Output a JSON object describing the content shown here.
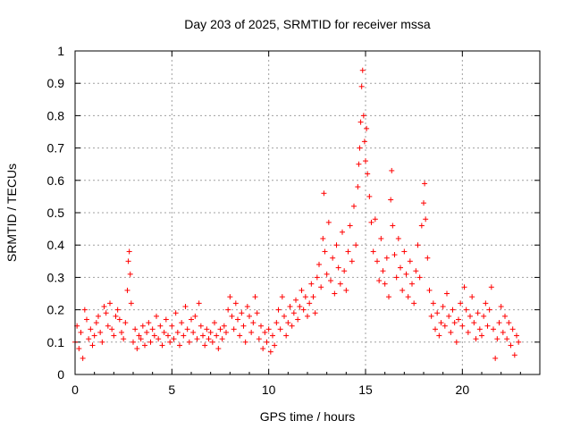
{
  "chart_data": {
    "type": "scatter",
    "title": "Day 203 of 2025, SRMTID for receiver mssa",
    "xlabel": "GPS time / hours",
    "ylabel": "SRMTID / TECUs",
    "xlim": [
      0,
      24
    ],
    "ylim": [
      0,
      1
    ],
    "xticks": [
      0,
      5,
      10,
      15,
      20
    ],
    "yticks": [
      0,
      0.1,
      0.2,
      0.3,
      0.4,
      0.5,
      0.6,
      0.7,
      0.8,
      0.9,
      1
    ],
    "grid": true,
    "marker": "+",
    "color": "#ff0000",
    "series": [
      {
        "name": "SRMTID",
        "points": [
          [
            0.0,
            0.1
          ],
          [
            0.1,
            0.15
          ],
          [
            0.2,
            0.08
          ],
          [
            0.3,
            0.13
          ],
          [
            0.4,
            0.05
          ],
          [
            0.5,
            0.2
          ],
          [
            0.6,
            0.17
          ],
          [
            0.7,
            0.11
          ],
          [
            0.8,
            0.14
          ],
          [
            0.9,
            0.09
          ],
          [
            1.0,
            0.12
          ],
          [
            1.1,
            0.16
          ],
          [
            1.2,
            0.18
          ],
          [
            1.3,
            0.13
          ],
          [
            1.4,
            0.1
          ],
          [
            1.5,
            0.21
          ],
          [
            1.6,
            0.19
          ],
          [
            1.7,
            0.15
          ],
          [
            1.8,
            0.22
          ],
          [
            1.9,
            0.14
          ],
          [
            2.0,
            0.12
          ],
          [
            2.1,
            0.18
          ],
          [
            2.2,
            0.2
          ],
          [
            2.3,
            0.17
          ],
          [
            2.4,
            0.13
          ],
          [
            2.5,
            0.11
          ],
          [
            2.6,
            0.16
          ],
          [
            2.7,
            0.26
          ],
          [
            2.75,
            0.35
          ],
          [
            2.8,
            0.38
          ],
          [
            2.85,
            0.31
          ],
          [
            2.9,
            0.22
          ],
          [
            3.0,
            0.1
          ],
          [
            3.1,
            0.14
          ],
          [
            3.2,
            0.08
          ],
          [
            3.3,
            0.12
          ],
          [
            3.4,
            0.11
          ],
          [
            3.5,
            0.15
          ],
          [
            3.6,
            0.09
          ],
          [
            3.7,
            0.13
          ],
          [
            3.8,
            0.16
          ],
          [
            3.9,
            0.1
          ],
          [
            4.0,
            0.14
          ],
          [
            4.1,
            0.12
          ],
          [
            4.2,
            0.18
          ],
          [
            4.3,
            0.11
          ],
          [
            4.4,
            0.15
          ],
          [
            4.5,
            0.09
          ],
          [
            4.6,
            0.13
          ],
          [
            4.7,
            0.17
          ],
          [
            4.8,
            0.12
          ],
          [
            4.9,
            0.1
          ],
          [
            5.0,
            0.15
          ],
          [
            5.1,
            0.11
          ],
          [
            5.2,
            0.19
          ],
          [
            5.3,
            0.13
          ],
          [
            5.4,
            0.09
          ],
          [
            5.5,
            0.16
          ],
          [
            5.6,
            0.12
          ],
          [
            5.7,
            0.21
          ],
          [
            5.8,
            0.14
          ],
          [
            5.9,
            0.1
          ],
          [
            6.0,
            0.17
          ],
          [
            6.1,
            0.13
          ],
          [
            6.2,
            0.18
          ],
          [
            6.3,
            0.11
          ],
          [
            6.4,
            0.22
          ],
          [
            6.5,
            0.15
          ],
          [
            6.6,
            0.12
          ],
          [
            6.7,
            0.09
          ],
          [
            6.8,
            0.14
          ],
          [
            6.9,
            0.11
          ],
          [
            7.0,
            0.13
          ],
          [
            7.1,
            0.1
          ],
          [
            7.2,
            0.16
          ],
          [
            7.3,
            0.12
          ],
          [
            7.4,
            0.08
          ],
          [
            7.5,
            0.14
          ],
          [
            7.6,
            0.11
          ],
          [
            7.7,
            0.15
          ],
          [
            7.8,
            0.13
          ],
          [
            7.9,
            0.2
          ],
          [
            8.0,
            0.24
          ],
          [
            8.1,
            0.18
          ],
          [
            8.2,
            0.14
          ],
          [
            8.3,
            0.22
          ],
          [
            8.4,
            0.17
          ],
          [
            8.5,
            0.12
          ],
          [
            8.6,
            0.19
          ],
          [
            8.7,
            0.15
          ],
          [
            8.8,
            0.1
          ],
          [
            8.9,
            0.21
          ],
          [
            9.0,
            0.18
          ],
          [
            9.1,
            0.13
          ],
          [
            9.2,
            0.16
          ],
          [
            9.3,
            0.24
          ],
          [
            9.4,
            0.19
          ],
          [
            9.5,
            0.11
          ],
          [
            9.6,
            0.15
          ],
          [
            9.7,
            0.08
          ],
          [
            9.8,
            0.13
          ],
          [
            9.9,
            0.1
          ],
          [
            10.0,
            0.14
          ],
          [
            10.1,
            0.07
          ],
          [
            10.2,
            0.12
          ],
          [
            10.3,
            0.09
          ],
          [
            10.4,
            0.16
          ],
          [
            10.5,
            0.2
          ],
          [
            10.6,
            0.14
          ],
          [
            10.7,
            0.24
          ],
          [
            10.8,
            0.18
          ],
          [
            10.9,
            0.12
          ],
          [
            11.0,
            0.16
          ],
          [
            11.1,
            0.21
          ],
          [
            11.2,
            0.15
          ],
          [
            11.3,
            0.19
          ],
          [
            11.4,
            0.23
          ],
          [
            11.5,
            0.17
          ],
          [
            11.6,
            0.21
          ],
          [
            11.7,
            0.26
          ],
          [
            11.8,
            0.2
          ],
          [
            11.9,
            0.24
          ],
          [
            12.0,
            0.18
          ],
          [
            12.1,
            0.22
          ],
          [
            12.2,
            0.28
          ],
          [
            12.3,
            0.24
          ],
          [
            12.4,
            0.19
          ],
          [
            12.5,
            0.3
          ],
          [
            12.6,
            0.34
          ],
          [
            12.7,
            0.27
          ],
          [
            12.8,
            0.42
          ],
          [
            12.85,
            0.56
          ],
          [
            12.9,
            0.38
          ],
          [
            13.0,
            0.31
          ],
          [
            13.1,
            0.47
          ],
          [
            13.2,
            0.29
          ],
          [
            13.3,
            0.36
          ],
          [
            13.4,
            0.25
          ],
          [
            13.5,
            0.4
          ],
          [
            13.6,
            0.33
          ],
          [
            13.7,
            0.28
          ],
          [
            13.8,
            0.44
          ],
          [
            13.9,
            0.32
          ],
          [
            14.0,
            0.26
          ],
          [
            14.1,
            0.38
          ],
          [
            14.2,
            0.46
          ],
          [
            14.3,
            0.35
          ],
          [
            14.4,
            0.52
          ],
          [
            14.5,
            0.4
          ],
          [
            14.6,
            0.58
          ],
          [
            14.65,
            0.65
          ],
          [
            14.7,
            0.7
          ],
          [
            14.75,
            0.78
          ],
          [
            14.8,
            0.89
          ],
          [
            14.85,
            0.94
          ],
          [
            14.9,
            0.8
          ],
          [
            14.95,
            0.72
          ],
          [
            15.0,
            0.66
          ],
          [
            15.05,
            0.76
          ],
          [
            15.1,
            0.62
          ],
          [
            15.2,
            0.55
          ],
          [
            15.3,
            0.47
          ],
          [
            15.4,
            0.38
          ],
          [
            15.5,
            0.48
          ],
          [
            15.6,
            0.35
          ],
          [
            15.7,
            0.29
          ],
          [
            15.8,
            0.42
          ],
          [
            15.9,
            0.32
          ],
          [
            16.0,
            0.28
          ],
          [
            16.1,
            0.36
          ],
          [
            16.2,
            0.24
          ],
          [
            16.3,
            0.54
          ],
          [
            16.35,
            0.63
          ],
          [
            16.4,
            0.46
          ],
          [
            16.5,
            0.37
          ],
          [
            16.6,
            0.3
          ],
          [
            16.7,
            0.42
          ],
          [
            16.8,
            0.33
          ],
          [
            16.9,
            0.26
          ],
          [
            17.0,
            0.38
          ],
          [
            17.1,
            0.31
          ],
          [
            17.2,
            0.24
          ],
          [
            17.3,
            0.35
          ],
          [
            17.4,
            0.28
          ],
          [
            17.5,
            0.22
          ],
          [
            17.6,
            0.32
          ],
          [
            17.7,
            0.4
          ],
          [
            17.8,
            0.3
          ],
          [
            17.9,
            0.46
          ],
          [
            18.0,
            0.53
          ],
          [
            18.05,
            0.59
          ],
          [
            18.1,
            0.48
          ],
          [
            18.2,
            0.36
          ],
          [
            18.3,
            0.26
          ],
          [
            18.4,
            0.18
          ],
          [
            18.5,
            0.22
          ],
          [
            18.6,
            0.14
          ],
          [
            18.7,
            0.19
          ],
          [
            18.8,
            0.12
          ],
          [
            18.9,
            0.16
          ],
          [
            19.0,
            0.21
          ],
          [
            19.1,
            0.15
          ],
          [
            19.2,
            0.25
          ],
          [
            19.3,
            0.18
          ],
          [
            19.4,
            0.13
          ],
          [
            19.5,
            0.2
          ],
          [
            19.6,
            0.16
          ],
          [
            19.7,
            0.1
          ],
          [
            19.8,
            0.17
          ],
          [
            19.9,
            0.22
          ],
          [
            20.0,
            0.15
          ],
          [
            20.1,
            0.27
          ],
          [
            20.2,
            0.2
          ],
          [
            20.3,
            0.13
          ],
          [
            20.4,
            0.18
          ],
          [
            20.5,
            0.24
          ],
          [
            20.6,
            0.16
          ],
          [
            20.7,
            0.11
          ],
          [
            20.8,
            0.19
          ],
          [
            20.9,
            0.14
          ],
          [
            21.0,
            0.12
          ],
          [
            21.1,
            0.18
          ],
          [
            21.2,
            0.22
          ],
          [
            21.3,
            0.15
          ],
          [
            21.4,
            0.2
          ],
          [
            21.5,
            0.27
          ],
          [
            21.6,
            0.14
          ],
          [
            21.7,
            0.05
          ],
          [
            21.8,
            0.11
          ],
          [
            21.9,
            0.16
          ],
          [
            22.0,
            0.21
          ],
          [
            22.1,
            0.13
          ],
          [
            22.2,
            0.18
          ],
          [
            22.3,
            0.11
          ],
          [
            22.4,
            0.16
          ],
          [
            22.5,
            0.09
          ],
          [
            22.6,
            0.14
          ],
          [
            22.7,
            0.06
          ],
          [
            22.8,
            0.12
          ],
          [
            22.9,
            0.1
          ]
        ]
      }
    ]
  }
}
